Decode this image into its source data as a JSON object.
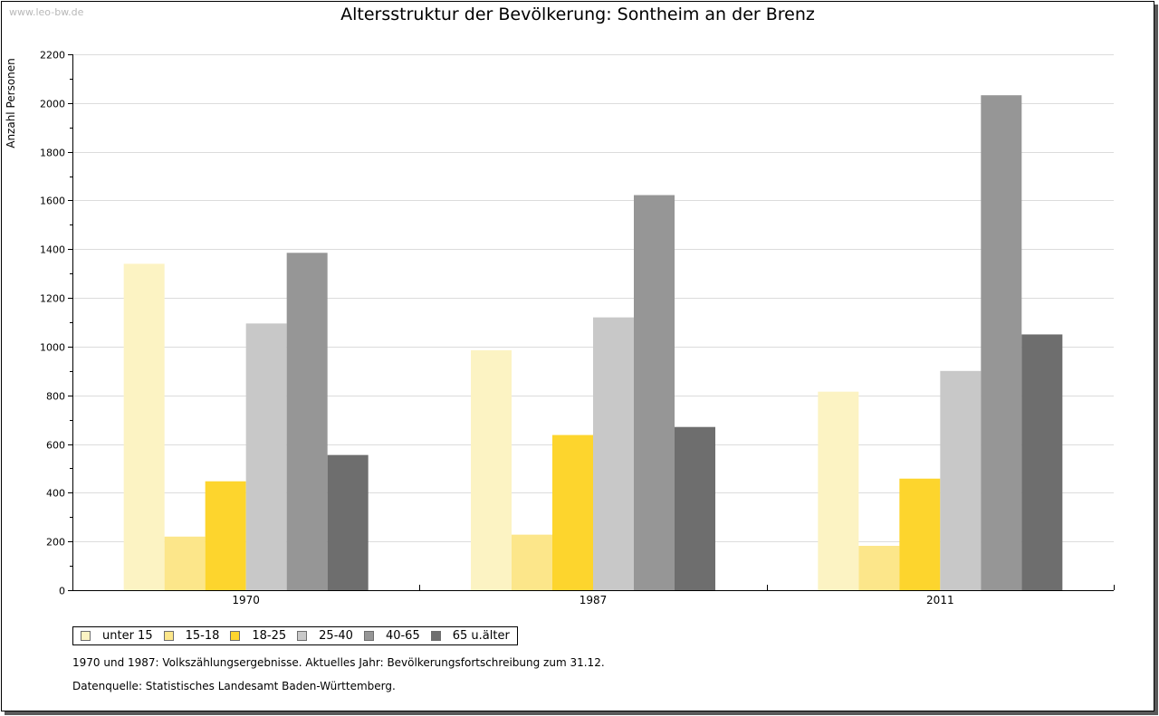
{
  "watermark": "www.leo-bw.de",
  "chart_data": {
    "type": "bar",
    "title": "Altersstruktur der Bevölkerung: Sontheim an der Brenz",
    "xlabel": "",
    "ylabel": "Anzahl Personen",
    "ylim": [
      0,
      2200
    ],
    "yticks": [
      0,
      200,
      400,
      600,
      800,
      1000,
      1200,
      1400,
      1600,
      1800,
      2000,
      2200
    ],
    "grid": true,
    "categories": [
      "1970",
      "1987",
      "2011"
    ],
    "series": [
      {
        "name": "unter 15",
        "color": "#fcf3c3",
        "values": [
          1340,
          985,
          815
        ]
      },
      {
        "name": "15-18",
        "color": "#fce68a",
        "values": [
          220,
          228,
          182
        ]
      },
      {
        "name": "18-25",
        "color": "#fdd52d",
        "values": [
          447,
          637,
          458
        ]
      },
      {
        "name": "25-40",
        "color": "#c8c8c8",
        "values": [
          1095,
          1120,
          900
        ]
      },
      {
        "name": "40-65",
        "color": "#969696",
        "values": [
          1385,
          1622,
          2032
        ]
      },
      {
        "name": "65 u.älter",
        "color": "#6e6e6e",
        "values": [
          555,
          670,
          1050
        ]
      }
    ],
    "legend_position": "bottom-left"
  },
  "notes": [
    "1970 und 1987: Volkszählungsergebnisse. Aktuelles Jahr: Bevölkerungsfortschreibung zum 31.12.",
    "Datenquelle: Statistisches Landesamt Baden-Württemberg."
  ]
}
